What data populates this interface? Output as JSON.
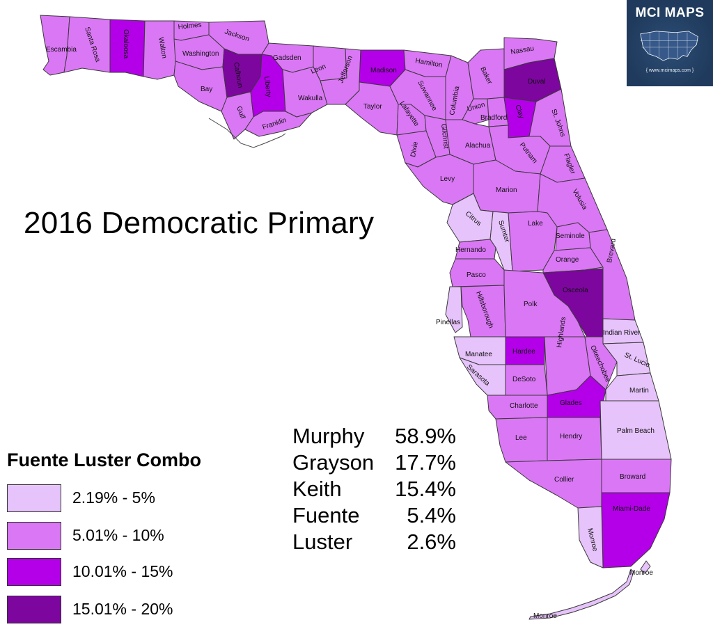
{
  "title": "2016 Democratic Primary",
  "brand": {
    "name": "MCI MAPS",
    "url": "{ www.mcimaps.com }"
  },
  "results": [
    {
      "name": "Murphy",
      "pct": "58.9%"
    },
    {
      "name": "Grayson",
      "pct": "17.7%"
    },
    {
      "name": "Keith",
      "pct": "15.4%"
    },
    {
      "name": "Fuente",
      "pct": "5.4%"
    },
    {
      "name": "Luster",
      "pct": "2.6%"
    }
  ],
  "legend": {
    "title": "Fuente Luster Combo",
    "items": [
      {
        "label": "2.19% - 5%",
        "color": "#e6c3fa"
      },
      {
        "label": "5.01% - 10%",
        "color": "#da77f5"
      },
      {
        "label": "10.01% - 15%",
        "color": "#b300e8"
      },
      {
        "label": "15.01% - 20%",
        "color": "#7d069f"
      }
    ]
  },
  "counties": [
    {
      "name": "Escambia",
      "bin": 1
    },
    {
      "name": "Santa Rosa",
      "bin": 1
    },
    {
      "name": "Okaloosa",
      "bin": 2
    },
    {
      "name": "Walton",
      "bin": 1
    },
    {
      "name": "Holmes",
      "bin": 1
    },
    {
      "name": "Washington",
      "bin": 1
    },
    {
      "name": "Jackson",
      "bin": 1
    },
    {
      "name": "Bay",
      "bin": 1
    },
    {
      "name": "Calhoun",
      "bin": 3
    },
    {
      "name": "Gulf",
      "bin": 1
    },
    {
      "name": "Liberty",
      "bin": 2
    },
    {
      "name": "Gadsden",
      "bin": 1
    },
    {
      "name": "Franklin",
      "bin": 1
    },
    {
      "name": "Leon",
      "bin": 1
    },
    {
      "name": "Wakulla",
      "bin": 1
    },
    {
      "name": "Jefferson",
      "bin": 1
    },
    {
      "name": "Madison",
      "bin": 2
    },
    {
      "name": "Taylor",
      "bin": 1
    },
    {
      "name": "Hamilton",
      "bin": 1
    },
    {
      "name": "Suwannee",
      "bin": 1
    },
    {
      "name": "Lafayette",
      "bin": 1
    },
    {
      "name": "Columbia",
      "bin": 1
    },
    {
      "name": "Baker",
      "bin": 1
    },
    {
      "name": "Nassau",
      "bin": 1
    },
    {
      "name": "Duval",
      "bin": 3
    },
    {
      "name": "Union",
      "bin": 1
    },
    {
      "name": "Bradford",
      "bin": 1
    },
    {
      "name": "Clay",
      "bin": 2
    },
    {
      "name": "St. Johns",
      "bin": 1
    },
    {
      "name": "Gilchrist",
      "bin": 1
    },
    {
      "name": "Dixie",
      "bin": 1
    },
    {
      "name": "Alachua",
      "bin": 1
    },
    {
      "name": "Putnam",
      "bin": 1
    },
    {
      "name": "Flagler",
      "bin": 1
    },
    {
      "name": "Levy",
      "bin": 1
    },
    {
      "name": "Marion",
      "bin": 1
    },
    {
      "name": "Volusia",
      "bin": 1
    },
    {
      "name": "Citrus",
      "bin": 0
    },
    {
      "name": "Sumter",
      "bin": 0
    },
    {
      "name": "Lake",
      "bin": 1
    },
    {
      "name": "Seminole",
      "bin": 1
    },
    {
      "name": "Hernando",
      "bin": 1
    },
    {
      "name": "Orange",
      "bin": 1
    },
    {
      "name": "Brevard",
      "bin": 1
    },
    {
      "name": "Pasco",
      "bin": 1
    },
    {
      "name": "Osceola",
      "bin": 3
    },
    {
      "name": "Pinellas",
      "bin": 0
    },
    {
      "name": "Hillsborough",
      "bin": 1
    },
    {
      "name": "Polk",
      "bin": 1
    },
    {
      "name": "Indian River",
      "bin": 0
    },
    {
      "name": "Manatee",
      "bin": 0
    },
    {
      "name": "Hardee",
      "bin": 2
    },
    {
      "name": "Highlands",
      "bin": 1
    },
    {
      "name": "Okeechobee",
      "bin": 1
    },
    {
      "name": "St. Lucie",
      "bin": 0
    },
    {
      "name": "Sarasota",
      "bin": 0
    },
    {
      "name": "DeSoto",
      "bin": 1
    },
    {
      "name": "Martin",
      "bin": 0
    },
    {
      "name": "Charlotte",
      "bin": 1
    },
    {
      "name": "Glades",
      "bin": 2
    },
    {
      "name": "Palm Beach",
      "bin": 0
    },
    {
      "name": "Lee",
      "bin": 1
    },
    {
      "name": "Hendry",
      "bin": 1
    },
    {
      "name": "Broward",
      "bin": 1
    },
    {
      "name": "Collier",
      "bin": 1
    },
    {
      "name": "Miami-Dade",
      "bin": 2
    },
    {
      "name": "Monroe",
      "bin": 0
    },
    {
      "name": "Monroe",
      "bin": 0
    },
    {
      "name": "Monroe",
      "bin": 0
    }
  ]
}
